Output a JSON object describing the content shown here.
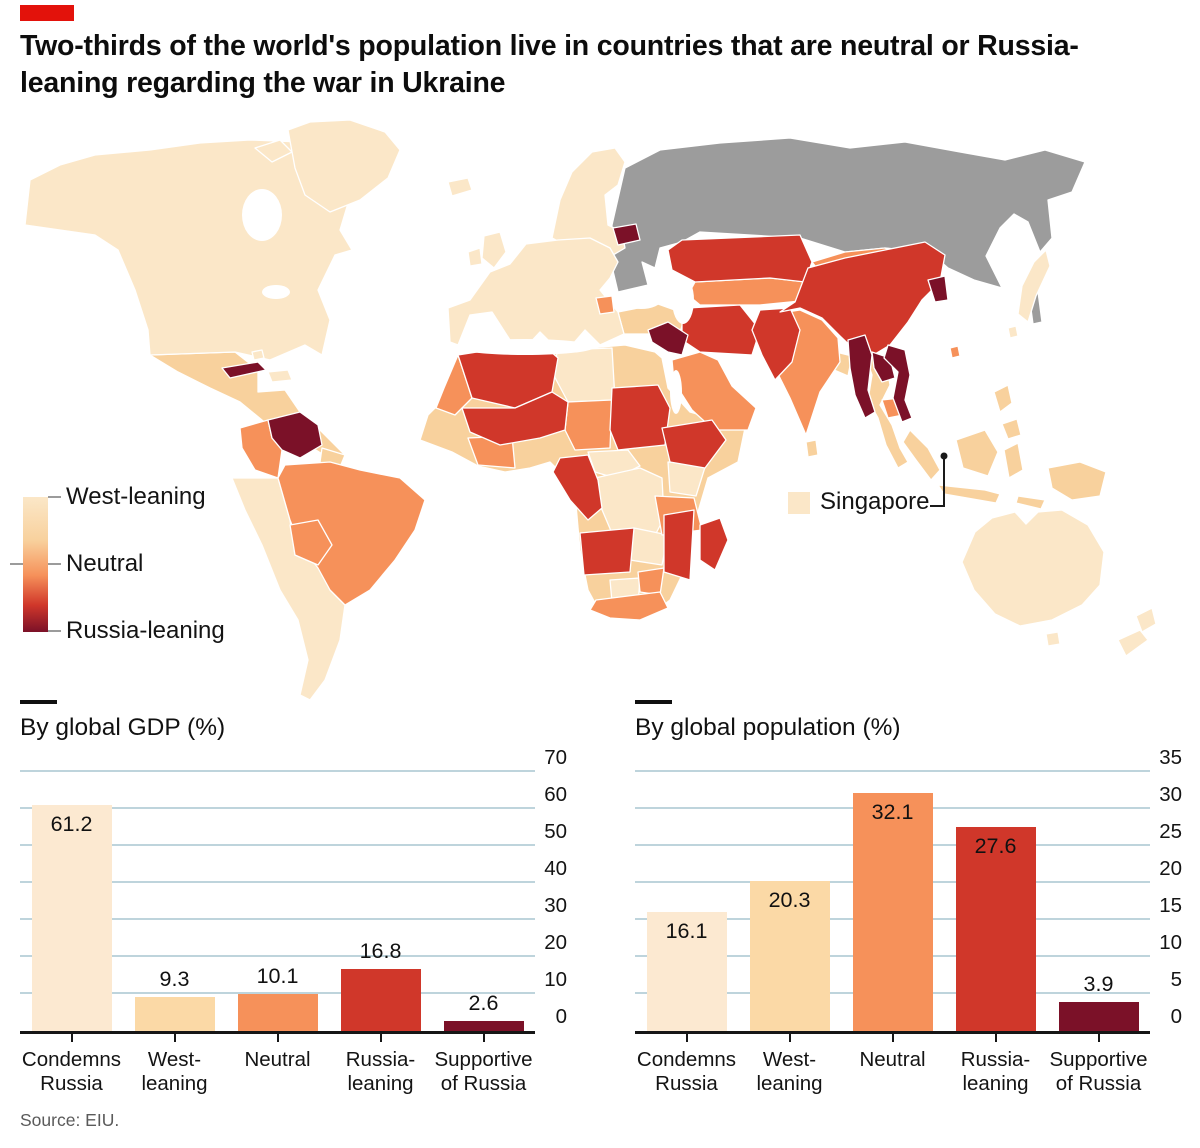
{
  "header": {
    "tag_color": "#e3120b",
    "title": "Two-thirds of the world's population live in countries that are neutral or Russia-leaning regarding the war in Ukraine"
  },
  "map": {
    "colors": {
      "russia": "#9c9c9c",
      "west_leaning_light": "#fbe7c8",
      "west_leaning": "#f8d19d",
      "neutral": "#f6915a",
      "russia_leaning": "#d0372a",
      "russia_leaning_dark": "#7b1128",
      "border": "#ffffff"
    },
    "legend": {
      "labels": [
        "West-leaning",
        "Neutral",
        "Russia-leaning"
      ]
    },
    "annotation_label": "Singapore"
  },
  "chart_data": [
    {
      "type": "bar",
      "title": "By global GDP (%)",
      "categories": [
        [
          "Condemns",
          "Russia"
        ],
        [
          "West-",
          "leaning"
        ],
        [
          "Neutral"
        ],
        [
          "Russia-",
          "leaning"
        ],
        [
          "Supportive",
          "of Russia"
        ]
      ],
      "values": [
        61.2,
        9.3,
        10.1,
        16.8,
        2.6
      ],
      "value_labels": [
        "61.2",
        "9.3",
        "10.1",
        "16.8",
        "2.6"
      ],
      "label_inside": [
        true,
        false,
        false,
        false,
        false
      ],
      "bar_colors": [
        "#fce9d1",
        "#fbd9a6",
        "#f6915a",
        "#d0372a",
        "#7b1128"
      ],
      "xlabel": "",
      "ylabel": "",
      "ylim": [
        0,
        70
      ],
      "yticks": [
        0,
        10,
        20,
        30,
        40,
        50,
        60,
        70
      ],
      "grid": true,
      "tick_labels_side": "right",
      "legend_position": "none"
    },
    {
      "type": "bar",
      "title": "By global population (%)",
      "categories": [
        [
          "Condemns",
          "Russia"
        ],
        [
          "West-",
          "leaning"
        ],
        [
          "Neutral"
        ],
        [
          "Russia-",
          "leaning"
        ],
        [
          "Supportive",
          "of Russia"
        ]
      ],
      "values": [
        16.1,
        20.3,
        32.1,
        27.6,
        3.9
      ],
      "value_labels": [
        "16.1",
        "20.3",
        "32.1",
        "27.6",
        "3.9"
      ],
      "label_inside": [
        true,
        true,
        true,
        true,
        false
      ],
      "bar_colors": [
        "#fce9d1",
        "#fbd9a6",
        "#f6915a",
        "#d0372a",
        "#7b1128"
      ],
      "xlabel": "",
      "ylabel": "",
      "ylim": [
        0,
        35
      ],
      "yticks": [
        0,
        5,
        10,
        15,
        20,
        25,
        30,
        35
      ],
      "grid": true,
      "tick_labels_side": "right",
      "legend_position": "none"
    }
  ],
  "footer": {
    "source": "Source: EIU."
  }
}
